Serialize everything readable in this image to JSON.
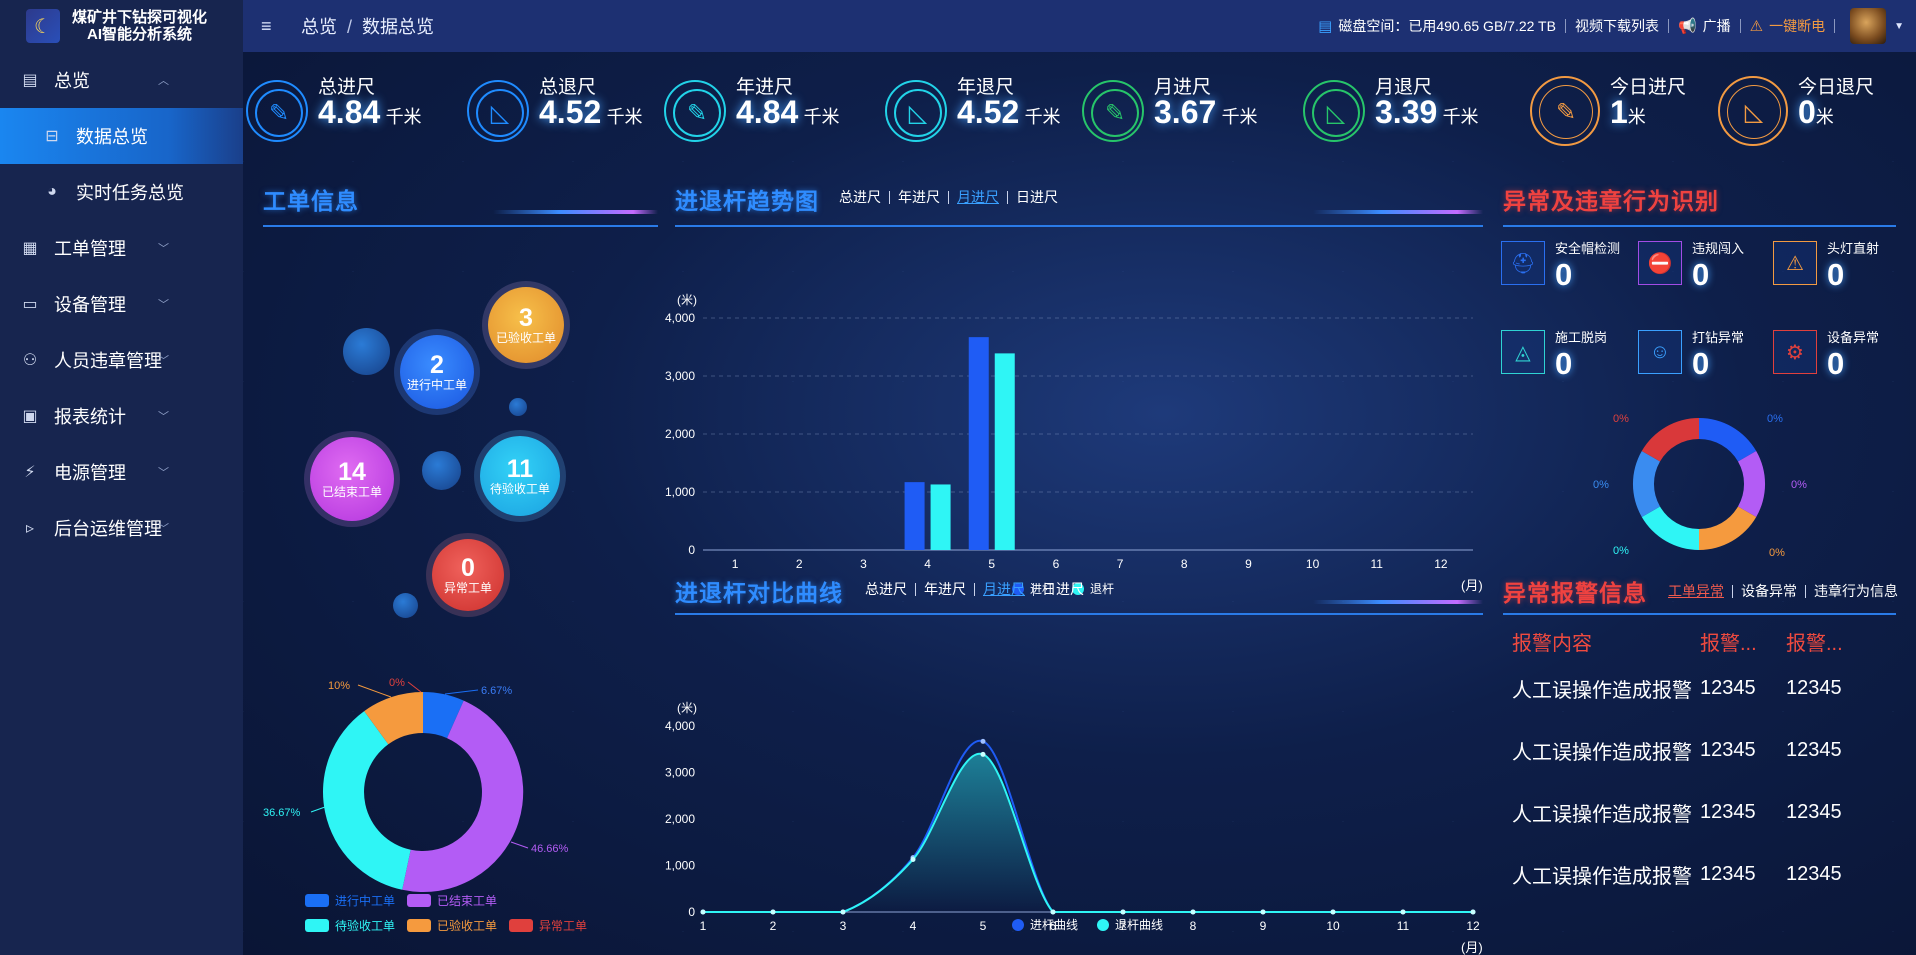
{
  "app": {
    "title_line1": "煤矿井下钻探可视化",
    "title_line2": "AI智能分析系统"
  },
  "sidebar": {
    "items": [
      {
        "label": "总览",
        "icon": "overview-icon",
        "expanded": true
      },
      {
        "label": "数据总览",
        "icon": "data-icon",
        "active": true
      },
      {
        "label": "实时任务总览",
        "icon": "dashboard-icon"
      },
      {
        "label": "工单管理",
        "icon": "clipboard-icon"
      },
      {
        "label": "设备管理",
        "icon": "server-icon"
      },
      {
        "label": "人员违章管理",
        "icon": "person-icon"
      },
      {
        "label": "报表统计",
        "icon": "report-icon"
      },
      {
        "label": "电源管理",
        "icon": "plug-icon"
      },
      {
        "label": "后台运维管理",
        "icon": "terminal-icon"
      }
    ]
  },
  "header": {
    "breadcrumb_root": "总览",
    "breadcrumb_sep": "/",
    "breadcrumb_current": "数据总览",
    "disk_label": "磁盘空间：已用490.65 GB/7.22 TB",
    "video_link": "视频下载列表",
    "broadcast": "广播",
    "power_off": "一键断电"
  },
  "stats": [
    {
      "label": "总进尺",
      "value": "4.84",
      "unit": "千米",
      "color": "#1f8bff"
    },
    {
      "label": "总退尺",
      "value": "4.52",
      "unit": "千米",
      "color": "#1f8bff"
    },
    {
      "label": "年进尺",
      "value": "4.84",
      "unit": "千米",
      "color": "#22d3e8"
    },
    {
      "label": "年退尺",
      "value": "4.52",
      "unit": "千米",
      "color": "#22d3e8"
    },
    {
      "label": "月进尺",
      "value": "3.67",
      "unit": "千米",
      "color": "#27c56a"
    },
    {
      "label": "月退尺",
      "value": "3.39",
      "unit": "千米",
      "color": "#27c56a"
    },
    {
      "label": "今日进尺",
      "value": "1",
      "unit": "米",
      "color": "#f29a42"
    },
    {
      "label": "今日退尺",
      "value": "0",
      "unit": "米",
      "color": "#f29a42"
    }
  ],
  "workorder": {
    "title": "工单信息",
    "bubbles": [
      {
        "count": "3",
        "label": "已验收工单",
        "color": "#f2a93b"
      },
      {
        "count": "2",
        "label": "进行中工单",
        "color": "#1a6ff5"
      },
      {
        "count": "14",
        "label": "已结束工单",
        "color": "#c24ae6"
      },
      {
        "count": "11",
        "label": "待验收工单",
        "color": "#1fb6f0"
      },
      {
        "count": "0",
        "label": "异常工单",
        "color": "#e0403d"
      }
    ],
    "donut_labels": [
      "6.67%",
      "46.66%",
      "36.67%",
      "10%",
      "0%"
    ],
    "legend": [
      {
        "label": "进行中工单",
        "color": "#1a6ff5"
      },
      {
        "label": "已结束工单",
        "color": "#b35cf5"
      },
      {
        "label": "待验收工单",
        "color": "#2ff5f5"
      },
      {
        "label": "已验收工单",
        "color": "#f59a3e"
      },
      {
        "label": "异常工单",
        "color": "#e0403d"
      }
    ]
  },
  "trend": {
    "title": "进退杆趋势图",
    "tabs": [
      "总进尺",
      "年进尺",
      "月进尺",
      "日进尺"
    ],
    "active_tab": "月进尺"
  },
  "compare": {
    "title": "进退杆对比曲线",
    "tabs": [
      "总进尺",
      "年进尺",
      "月进尺",
      "日进尺"
    ],
    "active_tab": "月进尺"
  },
  "violation": {
    "title": "异常及违章行为识别",
    "items": [
      {
        "label": "安全帽检测",
        "value": "0",
        "icon": "helmet-icon",
        "color": "#2a6ff0"
      },
      {
        "label": "违规闯入",
        "value": "0",
        "icon": "intrusion-icon",
        "color": "#a24ce6"
      },
      {
        "label": "头灯直射",
        "value": "0",
        "icon": "headlamp-icon",
        "color": "#f29a42"
      },
      {
        "label": "施工脱岗",
        "value": "0",
        "icon": "absence-icon",
        "color": "#2fd3d3"
      },
      {
        "label": "打钻异常",
        "value": "0",
        "icon": "drill-icon",
        "color": "#3aa0ff"
      },
      {
        "label": "设备异常",
        "value": "0",
        "icon": "device-icon",
        "color": "#e0403d"
      }
    ],
    "ring_labels": [
      "0%",
      "0%",
      "0%",
      "0%",
      "0%",
      "0%"
    ]
  },
  "alarm": {
    "title": "异常报警信息",
    "tabs": [
      "工单异常",
      "设备异常",
      "违章行为信息"
    ],
    "active_tab": "工单异常",
    "headers": [
      "报警内容",
      "报警...",
      "报警..."
    ],
    "rows": [
      [
        "人工误操作造成报警",
        "12345",
        "12345"
      ],
      [
        "人工误操作造成报警",
        "12345",
        "12345"
      ],
      [
        "人工误操作造成报警",
        "12345",
        "12345"
      ],
      [
        "人工误操作造成报警",
        "12345",
        "12345"
      ]
    ]
  },
  "chart_data": [
    {
      "type": "bar",
      "categories": [
        "1",
        "2",
        "3",
        "4",
        "5",
        "6",
        "7",
        "8",
        "9",
        "10",
        "11",
        "12"
      ],
      "series": [
        {
          "name": "进杆",
          "values": [
            0,
            0,
            0,
            1170,
            3670,
            0,
            0,
            0,
            0,
            0,
            0,
            0
          ],
          "color": "#1f5cf5"
        },
        {
          "name": "退杆",
          "values": [
            0,
            0,
            0,
            1130,
            3390,
            0,
            0,
            0,
            0,
            0,
            0,
            0
          ],
          "color": "#2ff5f5"
        }
      ],
      "ylabel": "(米)",
      "xlabel": "(月)",
      "ylim": [
        0,
        4000
      ],
      "yticks": [
        "0",
        "1,000",
        "2,000",
        "3,000",
        "4,000"
      ],
      "grid": true,
      "legend": "bottom"
    },
    {
      "type": "line",
      "categories": [
        "1",
        "2",
        "3",
        "4",
        "5",
        "6",
        "7",
        "8",
        "9",
        "10",
        "11",
        "12"
      ],
      "series": [
        {
          "name": "进杆曲线",
          "values": [
            0,
            0,
            0,
            1170,
            3670,
            0,
            0,
            0,
            0,
            0,
            0,
            0
          ],
          "color": "#1f5cf5"
        },
        {
          "name": "退杆曲线",
          "values": [
            0,
            0,
            0,
            1130,
            3390,
            0,
            0,
            0,
            0,
            0,
            0,
            0
          ],
          "color": "#2ff5f5"
        }
      ],
      "ylabel": "(米)",
      "xlabel": "(月)",
      "ylim": [
        0,
        4000
      ],
      "yticks": [
        "0",
        "1,000",
        "2,000",
        "3,000",
        "4,000"
      ],
      "legend": "bottom"
    }
  ]
}
